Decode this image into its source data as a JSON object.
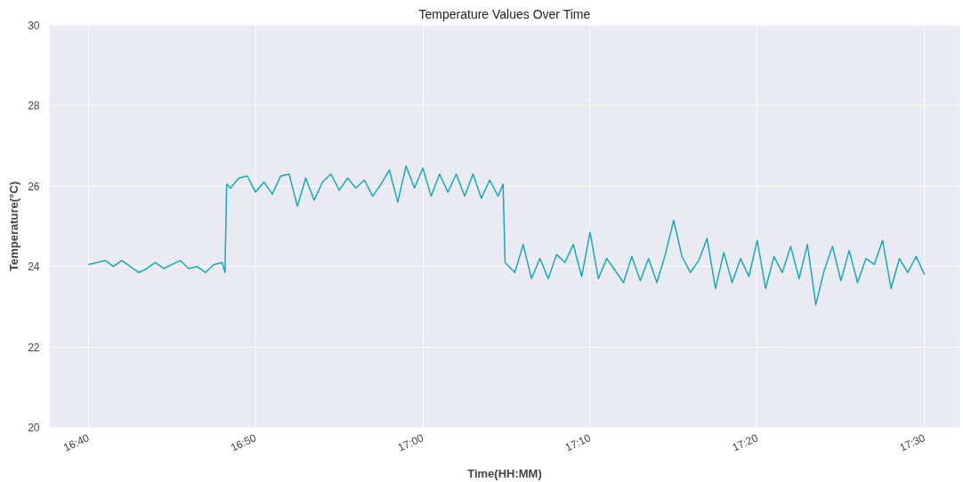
{
  "chart_data": {
    "type": "line",
    "title": "Temperature Values Over Time",
    "xlabel": "Time(HH:MM)",
    "ylabel": "Temperature(°C)",
    "x": [
      16.6667,
      16.675,
      16.6833,
      16.6917,
      16.7,
      16.7083,
      16.7167,
      16.725,
      16.7333,
      16.7417,
      16.75,
      16.7583,
      16.7667,
      16.775,
      16.7833,
      16.7917,
      16.8,
      16.8028,
      16.8045,
      16.8083,
      16.8167,
      16.825,
      16.8333,
      16.8417,
      16.85,
      16.8583,
      16.8667,
      16.875,
      16.8833,
      16.8917,
      16.9,
      16.9083,
      16.9167,
      16.925,
      16.9333,
      16.9417,
      16.95,
      16.9583,
      16.9667,
      16.975,
      16.9833,
      16.9917,
      17.0,
      17.0083,
      17.0167,
      17.025,
      17.0333,
      17.0417,
      17.05,
      17.0583,
      17.0667,
      17.075,
      17.08,
      17.082,
      17.0917,
      17.1,
      17.1083,
      17.1167,
      17.125,
      17.1333,
      17.1417,
      17.15,
      17.1583,
      17.1667,
      17.175,
      17.1833,
      17.1917,
      17.2,
      17.2083,
      17.2167,
      17.225,
      17.2333,
      17.2417,
      17.25,
      17.2583,
      17.2667,
      17.275,
      17.2833,
      17.2917,
      17.3,
      17.3083,
      17.3167,
      17.325,
      17.3333,
      17.3417,
      17.35,
      17.3583,
      17.3667,
      17.375,
      17.3833,
      17.3917,
      17.4,
      17.4083,
      17.4167,
      17.425,
      17.4333,
      17.4417,
      17.45,
      17.4583,
      17.4667,
      17.475,
      17.4833,
      17.4917,
      17.5
    ],
    "series": [
      {
        "color": "#17a9b8",
        "values": [
          24.05,
          24.1,
          24.15,
          24.0,
          24.15,
          24.0,
          23.85,
          23.95,
          24.1,
          23.95,
          24.05,
          24.15,
          23.95,
          24.0,
          23.85,
          24.05,
          24.1,
          23.85,
          26.05,
          25.95,
          26.2,
          26.25,
          25.85,
          26.1,
          25.8,
          26.25,
          26.3,
          25.5,
          26.2,
          25.65,
          26.1,
          26.3,
          25.9,
          26.2,
          25.95,
          26.15,
          25.75,
          26.05,
          26.4,
          25.6,
          26.5,
          25.95,
          26.45,
          25.75,
          26.3,
          25.85,
          26.3,
          25.75,
          26.3,
          25.7,
          26.15,
          25.75,
          26.05,
          24.1,
          23.85,
          24.55,
          23.7,
          24.2,
          23.7,
          24.3,
          24.1,
          24.55,
          23.75,
          24.85,
          23.7,
          24.2,
          23.9,
          23.6,
          24.25,
          23.65,
          24.2,
          23.6,
          24.3,
          25.15,
          24.25,
          23.85,
          24.15,
          24.7,
          23.45,
          24.35,
          23.6,
          24.2,
          23.75,
          24.65,
          23.45,
          24.25,
          23.85,
          24.5,
          23.7,
          24.55,
          23.05,
          23.9,
          24.5,
          23.65,
          24.4,
          23.6,
          24.2,
          24.05,
          24.65,
          23.45,
          24.2,
          23.85,
          24.25,
          23.8
        ]
      }
    ],
    "xlim": [
      16.6278,
      17.5353
    ],
    "xticks": [
      {
        "value": 16.6667,
        "label": "16:40"
      },
      {
        "value": 16.8333,
        "label": "16:50"
      },
      {
        "value": 17.0,
        "label": "17:00"
      },
      {
        "value": 17.1667,
        "label": "17:10"
      },
      {
        "value": 17.3333,
        "label": "17:20"
      },
      {
        "value": 17.5,
        "label": "17:30"
      }
    ],
    "ylim": [
      20,
      30
    ],
    "yticks": [
      20,
      22,
      24,
      26,
      28,
      30
    ],
    "grid": true,
    "line_style": "solid",
    "marker": "none"
  }
}
